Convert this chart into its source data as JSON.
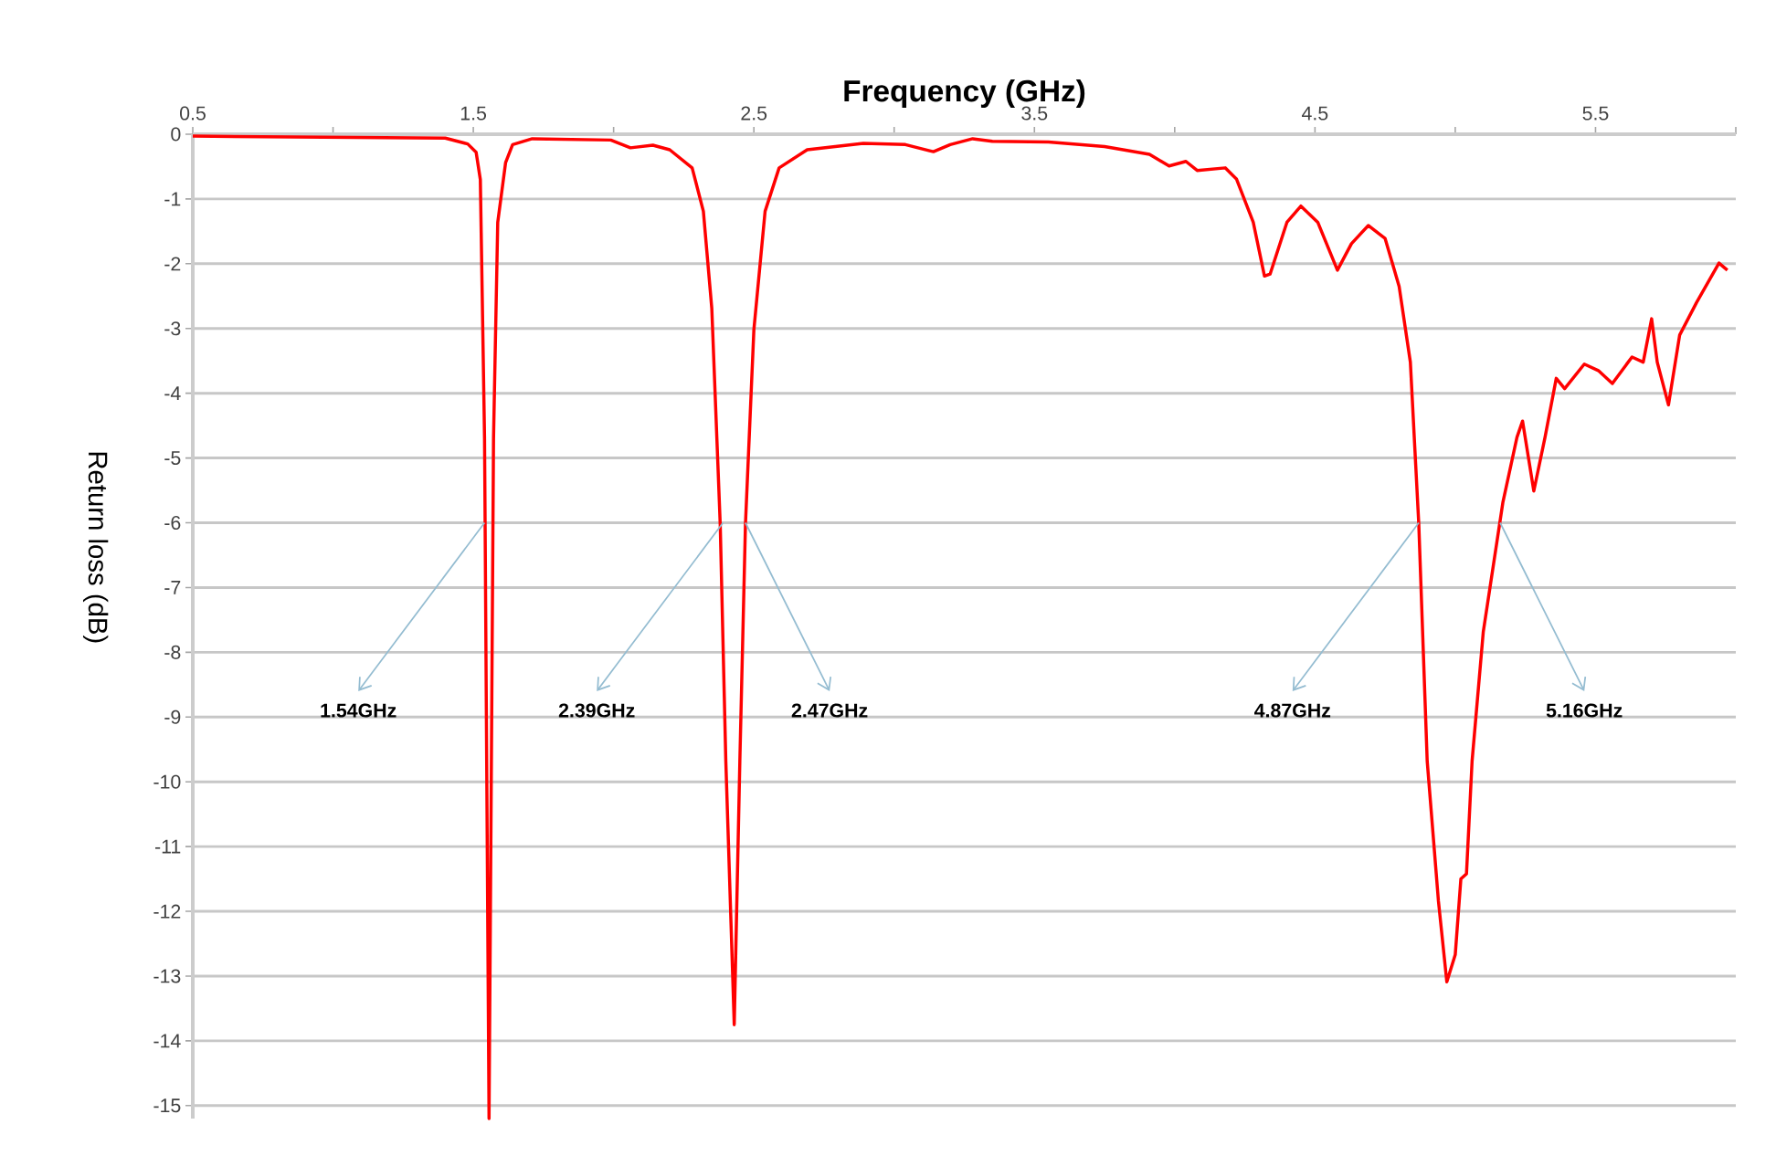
{
  "chart_data": {
    "type": "line",
    "xlabel": "Frequency (GHz)",
    "ylabel": "Return loss (dB)",
    "xlim": [
      0.5,
      6.0
    ],
    "ylim": [
      -15.2,
      0
    ],
    "xticks": [
      0.5,
      {
        "value": 1,
        "label": null
      },
      1.5,
      {
        "value": 2,
        "label": null
      },
      2.5,
      {
        "value": 3,
        "label": null
      },
      3.5,
      {
        "value": 4,
        "label": null
      },
      4.5,
      {
        "value": 5,
        "label": null
      },
      5.5,
      {
        "value": 6,
        "label": null
      }
    ],
    "yticks": [
      0,
      -1,
      -2,
      -3,
      -4,
      -5,
      -6,
      -7,
      -8,
      -9,
      -10,
      -11,
      -12,
      -13,
      -14,
      -15
    ],
    "grid": "y",
    "marker": "none",
    "line_style": "solid",
    "series": [
      {
        "color": "#ff0000",
        "x": [
          0.5,
          1.4,
          1.48,
          1.51,
          1.525,
          1.54,
          1.556,
          1.572,
          1.587,
          1.615,
          1.64,
          1.71,
          1.99,
          2.06,
          2.14,
          2.2,
          2.28,
          2.32,
          2.35,
          2.38,
          2.4,
          2.43,
          2.45,
          2.47,
          2.5,
          2.54,
          2.59,
          2.69,
          2.89,
          3.04,
          3.14,
          3.2,
          3.28,
          3.35,
          3.55,
          3.75,
          3.91,
          3.98,
          4.04,
          4.08,
          4.18,
          4.22,
          4.28,
          4.32,
          4.34,
          4.4,
          4.45,
          4.51,
          4.58,
          4.63,
          4.69,
          4.75,
          4.8,
          4.84,
          4.87,
          4.9,
          4.94,
          4.97,
          5.0,
          5.02,
          5.04,
          5.06,
          5.1,
          5.17,
          5.22,
          5.24,
          5.28,
          5.32,
          5.36,
          5.39,
          5.46,
          5.51,
          5.56,
          5.63,
          5.67,
          5.7,
          5.72,
          5.76,
          5.8,
          5.86,
          5.94,
          5.97
        ],
        "values": [
          -0.03,
          -0.06,
          -0.15,
          -0.28,
          -0.7,
          -4.7,
          -15.2,
          -4.7,
          -1.36,
          -0.44,
          -0.16,
          -0.07,
          -0.09,
          -0.21,
          -0.17,
          -0.24,
          -0.52,
          -1.19,
          -2.69,
          -6.02,
          -9.68,
          -13.75,
          -9.68,
          -6.02,
          -3.02,
          -1.19,
          -0.52,
          -0.24,
          -0.14,
          -0.16,
          -0.27,
          -0.16,
          -0.07,
          -0.11,
          -0.12,
          -0.19,
          -0.31,
          -0.49,
          -0.42,
          -0.56,
          -0.52,
          -0.69,
          -1.36,
          -2.19,
          -2.16,
          -1.36,
          -1.11,
          -1.36,
          -2.1,
          -1.69,
          -1.41,
          -1.61,
          -2.35,
          -3.52,
          -6.02,
          -9.68,
          -11.84,
          -13.09,
          -12.67,
          -11.5,
          -11.42,
          -9.68,
          -7.68,
          -5.68,
          -4.68,
          -4.43,
          -5.51,
          -4.68,
          -3.77,
          -3.93,
          -3.55,
          -3.65,
          -3.85,
          -3.44,
          -3.52,
          -2.85,
          -3.52,
          -4.18,
          -3.1,
          -2.6,
          -1.99,
          -2.1
        ]
      }
    ],
    "annotations": [
      {
        "text": "1.54GHz",
        "x": 1.54,
        "y": -6
      },
      {
        "text": "2.39GHz",
        "x": 2.39,
        "y": -6
      },
      {
        "text": "2.47GHz",
        "x": 2.47,
        "y": -6
      },
      {
        "text": "4.87GHz",
        "x": 4.87,
        "y": -6
      },
      {
        "text": "5.16GHz",
        "x": 5.16,
        "y": -6
      }
    ]
  }
}
